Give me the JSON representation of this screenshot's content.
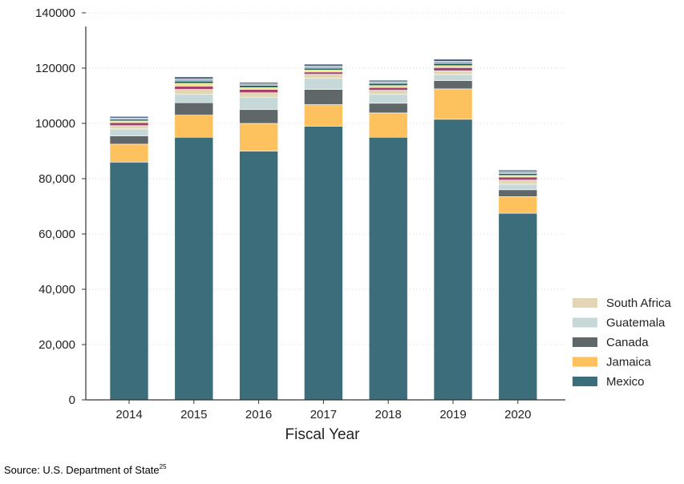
{
  "chart_data": {
    "type": "bar",
    "stacked": true,
    "xlabel": "Fiscal Year",
    "ylabel": "",
    "ylim": [
      0,
      140000
    ],
    "yticks": [
      0,
      20000,
      40000,
      60000,
      80000,
      100000,
      120000,
      140000
    ],
    "ytick_labels": [
      "0",
      "20,000",
      "40,000",
      "60,000",
      "80,000",
      "100000",
      "120000",
      "140000"
    ],
    "grid": "horizontal dotted",
    "legend_position": "right",
    "categories": [
      "2014",
      "2015",
      "2016",
      "2017",
      "2018",
      "2019",
      "2020"
    ],
    "series": [
      {
        "name": "Mexico",
        "color": "#3B6E7A",
        "values": [
          86000,
          95000,
          90000,
          99000,
          95000,
          101500,
          67500
        ]
      },
      {
        "name": "Jamaica",
        "color": "#FDC15D",
        "values": [
          6500,
          8000,
          10000,
          7800,
          8800,
          11000,
          6000
        ]
      },
      {
        "name": "Canada",
        "color": "#5F6769",
        "values": [
          3000,
          4500,
          5000,
          5500,
          3500,
          3000,
          2500
        ]
      },
      {
        "name": "Guatemala",
        "color": "#C7D8D9",
        "values": [
          2500,
          3000,
          4500,
          4000,
          3200,
          2200,
          2000
        ]
      },
      {
        "name": "South Africa",
        "color": "#E2D6B5",
        "values": [
          1200,
          1800,
          1600,
          1500,
          1500,
          1300,
          1500
        ]
      },
      {
        "color": "#A3426E",
        "values": [
          1100,
          1200,
          1200,
          800,
          1000,
          1200,
          1100
        ]
      },
      {
        "color": "#EFE08A",
        "values": [
          600,
          1000,
          700,
          700,
          700,
          700,
          600
        ]
      },
      {
        "color": "#1E5E4A",
        "values": [
          600,
          800,
          800,
          700,
          800,
          800,
          700
        ]
      },
      {
        "color": "#9CB3CE",
        "values": [
          500,
          800,
          500,
          800,
          600,
          800,
          700
        ]
      },
      {
        "color": "#2F4A6E",
        "values": [
          500,
          700,
          500,
          600,
          500,
          700,
          500
        ]
      }
    ],
    "legend_order": [
      "South Africa",
      "Guatemala",
      "Canada",
      "Jamaica",
      "Mexico"
    ]
  },
  "source_note": {
    "text": "Source: U.S. Department of State",
    "superscript": "25"
  }
}
